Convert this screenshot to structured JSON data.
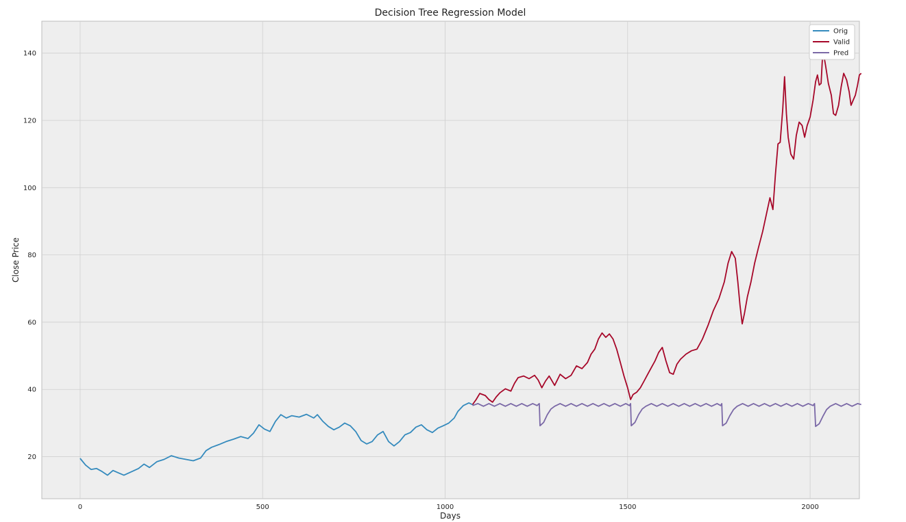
{
  "chart_data": {
    "type": "line",
    "title": "Decision Tree Regression Model",
    "xlabel": "Days",
    "ylabel": "Close Price",
    "xlim": [
      -105,
      2135
    ],
    "ylim": [
      7.5,
      149.5
    ],
    "xticks": [
      0,
      500,
      1000,
      1500,
      2000
    ],
    "yticks": [
      20,
      40,
      60,
      80,
      100,
      120,
      140
    ],
    "grid": true,
    "legend": "top-right",
    "series": [
      {
        "name": "Orig",
        "color": "#348ABD",
        "points": [
          [
            0,
            19.5
          ],
          [
            15,
            17.5
          ],
          [
            30,
            16.2
          ],
          [
            45,
            16.5
          ],
          [
            60,
            15.6
          ],
          [
            75,
            14.5
          ],
          [
            90,
            15.9
          ],
          [
            105,
            15.2
          ],
          [
            120,
            14.5
          ],
          [
            140,
            15.5
          ],
          [
            160,
            16.5
          ],
          [
            175,
            17.8
          ],
          [
            190,
            16.8
          ],
          [
            210,
            18.5
          ],
          [
            230,
            19.2
          ],
          [
            250,
            20.3
          ],
          [
            270,
            19.6
          ],
          [
            290,
            19.2
          ],
          [
            310,
            18.8
          ],
          [
            330,
            19.6
          ],
          [
            345,
            21.8
          ],
          [
            360,
            22.8
          ],
          [
            380,
            23.6
          ],
          [
            400,
            24.5
          ],
          [
            420,
            25.2
          ],
          [
            440,
            26.0
          ],
          [
            460,
            25.4
          ],
          [
            475,
            27.0
          ],
          [
            490,
            29.5
          ],
          [
            505,
            28.2
          ],
          [
            520,
            27.5
          ],
          [
            535,
            30.5
          ],
          [
            550,
            32.5
          ],
          [
            565,
            31.5
          ],
          [
            580,
            32.2
          ],
          [
            600,
            31.8
          ],
          [
            620,
            32.6
          ],
          [
            640,
            31.5
          ],
          [
            650,
            32.5
          ],
          [
            665,
            30.5
          ],
          [
            680,
            29.0
          ],
          [
            695,
            28.0
          ],
          [
            710,
            28.8
          ],
          [
            725,
            30.0
          ],
          [
            740,
            29.2
          ],
          [
            755,
            27.5
          ],
          [
            770,
            24.8
          ],
          [
            785,
            23.8
          ],
          [
            800,
            24.5
          ],
          [
            815,
            26.5
          ],
          [
            830,
            27.5
          ],
          [
            845,
            24.5
          ],
          [
            860,
            23.2
          ],
          [
            875,
            24.5
          ],
          [
            890,
            26.5
          ],
          [
            905,
            27.2
          ],
          [
            920,
            28.8
          ],
          [
            935,
            29.5
          ],
          [
            950,
            28.0
          ],
          [
            965,
            27.2
          ],
          [
            980,
            28.5
          ],
          [
            995,
            29.2
          ],
          [
            1010,
            30.0
          ],
          [
            1025,
            31.5
          ],
          [
            1035,
            33.5
          ],
          [
            1050,
            35.2
          ],
          [
            1065,
            36.0
          ],
          [
            1075,
            35.5
          ]
        ]
      },
      {
        "name": "Valid",
        "color": "#A60628",
        "points": [
          [
            1075,
            35.5
          ],
          [
            1085,
            37.0
          ],
          [
            1095,
            38.8
          ],
          [
            1110,
            38.2
          ],
          [
            1120,
            37.0
          ],
          [
            1130,
            36.2
          ],
          [
            1140,
            37.8
          ],
          [
            1150,
            39.0
          ],
          [
            1165,
            40.2
          ],
          [
            1180,
            39.5
          ],
          [
            1190,
            41.8
          ],
          [
            1200,
            43.5
          ],
          [
            1215,
            44.0
          ],
          [
            1230,
            43.2
          ],
          [
            1245,
            44.2
          ],
          [
            1255,
            42.8
          ],
          [
            1265,
            40.5
          ],
          [
            1275,
            42.5
          ],
          [
            1285,
            44.0
          ],
          [
            1300,
            41.2
          ],
          [
            1315,
            44.5
          ],
          [
            1330,
            43.2
          ],
          [
            1345,
            44.2
          ],
          [
            1360,
            47.0
          ],
          [
            1375,
            46.2
          ],
          [
            1390,
            48.0
          ],
          [
            1400,
            50.5
          ],
          [
            1410,
            52.0
          ],
          [
            1420,
            55.0
          ],
          [
            1430,
            56.8
          ],
          [
            1440,
            55.5
          ],
          [
            1450,
            56.5
          ],
          [
            1460,
            55.0
          ],
          [
            1470,
            52.0
          ],
          [
            1480,
            48.0
          ],
          [
            1490,
            44.0
          ],
          [
            1500,
            40.5
          ],
          [
            1508,
            37.0
          ],
          [
            1515,
            38.5
          ],
          [
            1525,
            39.2
          ],
          [
            1535,
            40.5
          ],
          [
            1545,
            42.5
          ],
          [
            1555,
            44.5
          ],
          [
            1565,
            46.5
          ],
          [
            1575,
            48.5
          ],
          [
            1585,
            51.0
          ],
          [
            1595,
            52.5
          ],
          [
            1605,
            48.5
          ],
          [
            1615,
            45.0
          ],
          [
            1625,
            44.5
          ],
          [
            1635,
            47.5
          ],
          [
            1645,
            49.0
          ],
          [
            1660,
            50.5
          ],
          [
            1675,
            51.5
          ],
          [
            1690,
            52.0
          ],
          [
            1705,
            55.0
          ],
          [
            1720,
            59.0
          ],
          [
            1735,
            63.5
          ],
          [
            1750,
            67.0
          ],
          [
            1765,
            72.0
          ],
          [
            1775,
            77.5
          ],
          [
            1785,
            81.0
          ],
          [
            1795,
            79.0
          ],
          [
            1802,
            72.0
          ],
          [
            1808,
            65.0
          ],
          [
            1814,
            59.5
          ],
          [
            1820,
            62.5
          ],
          [
            1828,
            67.5
          ],
          [
            1838,
            72.0
          ],
          [
            1848,
            77.5
          ],
          [
            1858,
            82.0
          ],
          [
            1870,
            87.0
          ],
          [
            1880,
            92.0
          ],
          [
            1890,
            97.0
          ],
          [
            1898,
            93.5
          ],
          [
            1905,
            104.0
          ],
          [
            1912,
            113.0
          ],
          [
            1918,
            113.5
          ],
          [
            1925,
            123.5
          ],
          [
            1930,
            133.0
          ],
          [
            1935,
            122.0
          ],
          [
            1940,
            115.0
          ],
          [
            1947,
            110.0
          ],
          [
            1955,
            108.5
          ],
          [
            1962,
            115.5
          ],
          [
            1970,
            119.5
          ],
          [
            1978,
            118.5
          ],
          [
            1985,
            115.0
          ],
          [
            1992,
            118.5
          ],
          [
            2000,
            121.0
          ],
          [
            2008,
            126.0
          ],
          [
            2015,
            131.5
          ],
          [
            2020,
            133.5
          ],
          [
            2025,
            130.5
          ],
          [
            2030,
            131.0
          ],
          [
            2035,
            141.0
          ],
          [
            2042,
            136.5
          ],
          [
            2050,
            131.0
          ],
          [
            2058,
            127.5
          ],
          [
            2064,
            122.0
          ],
          [
            2070,
            121.5
          ],
          [
            2078,
            124.5
          ],
          [
            2085,
            130.0
          ],
          [
            2092,
            134.0
          ],
          [
            2100,
            132.0
          ],
          [
            2107,
            128.5
          ],
          [
            2112,
            124.5
          ],
          [
            2118,
            126.0
          ],
          [
            2124,
            127.5
          ],
          [
            2130,
            130.5
          ],
          [
            2135,
            133.5
          ],
          [
            2140,
            134.0
          ]
        ]
      },
      {
        "name": "Pred",
        "color": "#7A68A6",
        "points": [
          [
            1075,
            35.2
          ],
          [
            1090,
            35.8
          ],
          [
            1105,
            35.0
          ],
          [
            1120,
            35.8
          ],
          [
            1135,
            35.0
          ],
          [
            1150,
            35.8
          ],
          [
            1165,
            35.0
          ],
          [
            1180,
            35.8
          ],
          [
            1195,
            35.0
          ],
          [
            1210,
            35.8
          ],
          [
            1225,
            35.0
          ],
          [
            1240,
            35.8
          ],
          [
            1252,
            35.2
          ],
          [
            1258,
            35.8
          ],
          [
            1260,
            29.2
          ],
          [
            1270,
            30.2
          ],
          [
            1280,
            32.5
          ],
          [
            1290,
            34.2
          ],
          [
            1300,
            35.0
          ],
          [
            1315,
            35.8
          ],
          [
            1330,
            35.0
          ],
          [
            1345,
            35.8
          ],
          [
            1360,
            35.0
          ],
          [
            1375,
            35.8
          ],
          [
            1390,
            35.0
          ],
          [
            1405,
            35.8
          ],
          [
            1420,
            35.0
          ],
          [
            1435,
            35.8
          ],
          [
            1450,
            35.0
          ],
          [
            1465,
            35.8
          ],
          [
            1480,
            35.0
          ],
          [
            1495,
            35.8
          ],
          [
            1505,
            35.2
          ],
          [
            1508,
            35.8
          ],
          [
            1510,
            29.2
          ],
          [
            1520,
            30.2
          ],
          [
            1530,
            32.5
          ],
          [
            1540,
            34.2
          ],
          [
            1550,
            35.0
          ],
          [
            1565,
            35.8
          ],
          [
            1580,
            35.0
          ],
          [
            1595,
            35.8
          ],
          [
            1610,
            35.0
          ],
          [
            1625,
            35.8
          ],
          [
            1640,
            35.0
          ],
          [
            1655,
            35.8
          ],
          [
            1670,
            35.0
          ],
          [
            1685,
            35.8
          ],
          [
            1700,
            35.0
          ],
          [
            1715,
            35.8
          ],
          [
            1730,
            35.0
          ],
          [
            1745,
            35.8
          ],
          [
            1755,
            35.2
          ],
          [
            1758,
            35.8
          ],
          [
            1760,
            29.2
          ],
          [
            1770,
            30.0
          ],
          [
            1780,
            32.2
          ],
          [
            1790,
            34.0
          ],
          [
            1800,
            35.0
          ],
          [
            1815,
            35.8
          ],
          [
            1830,
            35.0
          ],
          [
            1845,
            35.8
          ],
          [
            1860,
            35.0
          ],
          [
            1875,
            35.8
          ],
          [
            1890,
            35.0
          ],
          [
            1905,
            35.8
          ],
          [
            1920,
            35.0
          ],
          [
            1935,
            35.8
          ],
          [
            1950,
            35.0
          ],
          [
            1965,
            35.8
          ],
          [
            1980,
            35.0
          ],
          [
            1995,
            35.8
          ],
          [
            2008,
            35.2
          ],
          [
            2012,
            35.8
          ],
          [
            2015,
            29.0
          ],
          [
            2025,
            29.8
          ],
          [
            2035,
            32.0
          ],
          [
            2045,
            34.0
          ],
          [
            2055,
            35.0
          ],
          [
            2070,
            35.8
          ],
          [
            2085,
            35.0
          ],
          [
            2100,
            35.8
          ],
          [
            2115,
            35.0
          ],
          [
            2130,
            35.8
          ],
          [
            2140,
            35.5
          ]
        ]
      }
    ]
  }
}
